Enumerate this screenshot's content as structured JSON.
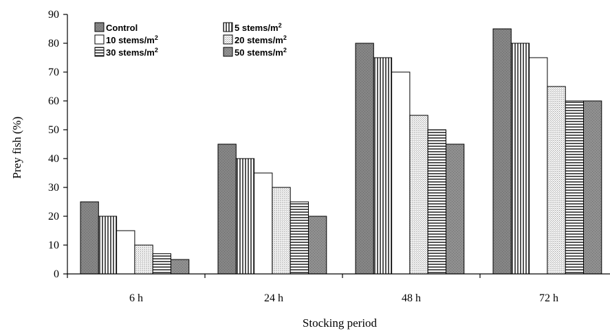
{
  "chart_data": {
    "type": "bar",
    "title": "",
    "xlabel": "Stocking period",
    "ylabel": "Prey fish (%)",
    "categories": [
      "6 h",
      "24 h",
      "48 h",
      "72 h"
    ],
    "ylim": [
      0,
      90
    ],
    "yticks": [
      "0",
      "10",
      "20",
      "30",
      "40",
      "50",
      "60",
      "70",
      "80",
      "90"
    ],
    "grid": false,
    "legend_position": "top-left",
    "series": [
      {
        "name": "Control",
        "values": [
          25,
          45,
          80,
          85
        ],
        "pattern": "solid-dark"
      },
      {
        "name": "5 stems/m2",
        "values": [
          20,
          40,
          75,
          80
        ],
        "pattern": "vertical-stripes"
      },
      {
        "name": "10 stems/m2",
        "values": [
          15,
          35,
          70,
          75
        ],
        "pattern": "white"
      },
      {
        "name": "20 stems/m2",
        "values": [
          10,
          30,
          55,
          65
        ],
        "pattern": "light-dots"
      },
      {
        "name": "30 stems/m2",
        "values": [
          7,
          25,
          50,
          60
        ],
        "pattern": "horizontal-stripes"
      },
      {
        "name": "50 stems/m2",
        "values": [
          5,
          20,
          45,
          60
        ],
        "pattern": "solid-medium"
      }
    ],
    "legend": {
      "entries": [
        {
          "base": "Control",
          "sup": ""
        },
        {
          "base": "5 stems/m",
          "sup": "2"
        },
        {
          "base": "10 stems/m",
          "sup": "2"
        },
        {
          "base": "20 stems/m",
          "sup": "2"
        },
        {
          "base": "30 stems/m",
          "sup": "2"
        },
        {
          "base": "50 stems/m",
          "sup": "2"
        }
      ]
    }
  }
}
